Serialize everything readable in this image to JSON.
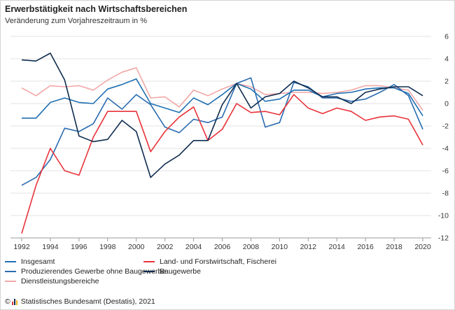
{
  "header": {
    "title": "Erwerbstätigkeit nach Wirtschaftsbereichen",
    "subtitle": "Veränderung zum Vorjahreszeitraum in %"
  },
  "source": {
    "copyright": "©",
    "text": "Statistisches Bundesamt (Destatis), 2021"
  },
  "chart_data": {
    "type": "line",
    "title": "Erwerbstätigkeit nach Wirtschaftsbereichen",
    "subtitle": "Veränderung zum Vorjahreszeitraum in %",
    "xlabel": "",
    "ylabel": "",
    "xlim": [
      1991.5,
      2020.5
    ],
    "ylim": [
      -12,
      6
    ],
    "y_ticks": [
      6,
      4,
      2,
      0,
      -2,
      -4,
      -6,
      -8,
      -10,
      -12
    ],
    "x_ticks": [
      1992,
      1994,
      1996,
      1998,
      2000,
      2002,
      2004,
      2006,
      2008,
      2010,
      2012,
      2014,
      2016,
      2018,
      2020
    ],
    "grid": "horizontal",
    "y_axis_position": "right",
    "legend_position": "bottom",
    "x": [
      1992,
      1993,
      1994,
      1995,
      1996,
      1997,
      1998,
      1999,
      2000,
      2001,
      2002,
      2003,
      2004,
      2005,
      2006,
      2007,
      2008,
      2009,
      2010,
      2011,
      2012,
      2013,
      2014,
      2015,
      2016,
      2017,
      2018,
      2019,
      2020
    ],
    "series": [
      {
        "name": "Insgesamt",
        "color": "#1f6fb2",
        "values": [
          -1.3,
          -1.3,
          0.1,
          0.5,
          0.1,
          0.0,
          1.3,
          1.7,
          2.2,
          0.0,
          -0.4,
          -0.8,
          0.5,
          -0.1,
          0.8,
          1.8,
          1.3,
          0.2,
          0.4,
          1.2,
          1.2,
          0.6,
          0.9,
          1.0,
          1.3,
          1.4,
          1.4,
          0.9,
          -1.1
        ]
      },
      {
        "name": "Land- und Forstwirtschaft, Fischerei",
        "color": "#e8333a",
        "values": [
          -11.6,
          -7.3,
          -4.0,
          -6.0,
          -6.4,
          -3.0,
          -0.7,
          -0.7,
          -0.7,
          -4.3,
          -2.5,
          -1.2,
          -0.3,
          -3.3,
          -2.3,
          0.0,
          -0.8,
          -0.7,
          -1.0,
          0.8,
          -0.4,
          -0.9,
          -0.4,
          -0.7,
          -1.5,
          -1.2,
          -1.1,
          -1.4,
          -3.7
        ]
      },
      {
        "name": "Produzierendes Gewerbe ohne Baugewerbe",
        "color": "#2b6cb0",
        "values": [
          -7.3,
          -6.6,
          -5.0,
          -2.2,
          -2.5,
          -1.8,
          0.5,
          -0.5,
          0.8,
          -0.1,
          -2.1,
          -2.6,
          -1.4,
          -1.7,
          -1.2,
          1.8,
          2.3,
          -2.1,
          -1.7,
          1.9,
          1.5,
          0.5,
          0.5,
          0.2,
          0.4,
          1.0,
          1.7,
          0.7,
          -2.3
        ]
      },
      {
        "name": "Dienstleistungsbereiche",
        "color": "#f2a7a7",
        "values": [
          1.4,
          0.7,
          1.6,
          1.5,
          1.6,
          1.2,
          2.1,
          2.8,
          3.2,
          0.5,
          0.6,
          -0.3,
          1.2,
          0.7,
          1.3,
          1.8,
          1.5,
          0.8,
          0.9,
          1.0,
          1.0,
          0.9,
          1.0,
          1.2,
          1.6,
          1.6,
          1.4,
          1.2,
          -0.6
        ]
      },
      {
        "name": "Baugewerbe",
        "color": "#0f2c4f",
        "values": [
          3.9,
          3.8,
          4.5,
          2.1,
          -2.9,
          -3.4,
          -3.2,
          -1.5,
          -2.5,
          -6.6,
          -5.4,
          -4.6,
          -3.3,
          -3.3,
          -0.1,
          1.8,
          -0.4,
          0.6,
          0.9,
          2.0,
          1.4,
          0.6,
          0.6,
          0.0,
          1.0,
          1.3,
          1.5,
          1.5,
          0.7
        ]
      }
    ]
  },
  "legend": [
    {
      "label": "Insgesamt",
      "color": "#1f6fb2"
    },
    {
      "label": "Land- und Forstwirtschaft, Fischerei",
      "color": "#e8333a"
    },
    {
      "label": "Produzierendes Gewerbe ohne Baugewerbe",
      "color": "#2b6cb0"
    },
    {
      "label": "Baugewerbe",
      "color": "#0f2c4f"
    },
    {
      "label": "Dienstleistungsbereiche",
      "color": "#f2a7a7"
    }
  ]
}
